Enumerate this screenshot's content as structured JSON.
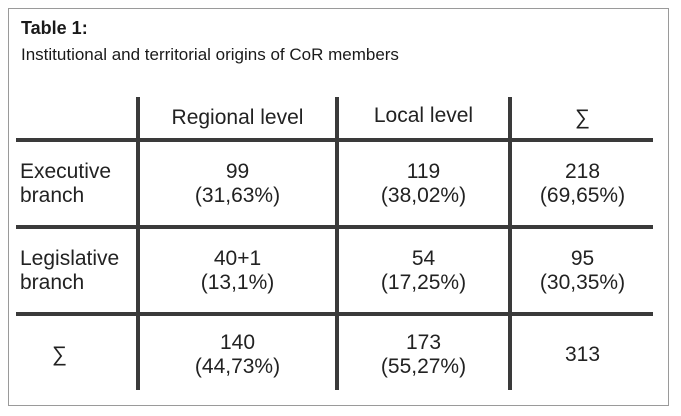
{
  "caption": {
    "title": "Table 1:",
    "subtitle": "Institutional and territorial origins of CoR members"
  },
  "table": {
    "header": [
      "",
      "Regional level",
      "Local level",
      "∑"
    ],
    "rows": [
      {
        "label": [
          "Executive",
          "branch"
        ],
        "cells": [
          [
            "99",
            "(31,63%)"
          ],
          [
            "119",
            "(38,02%)"
          ],
          [
            "218",
            "(69,65%)"
          ]
        ]
      },
      {
        "label": [
          "Legislative",
          "branch"
        ],
        "cells": [
          [
            "40+1",
            "(13,1%)"
          ],
          [
            "54",
            "(17,25%)"
          ],
          [
            "95",
            "(30,35%)"
          ]
        ]
      },
      {
        "label": [
          "∑"
        ],
        "cells": [
          [
            "140",
            "(44,73%)"
          ],
          [
            "173",
            "(55,27%)"
          ],
          [
            "313"
          ]
        ]
      }
    ]
  }
}
